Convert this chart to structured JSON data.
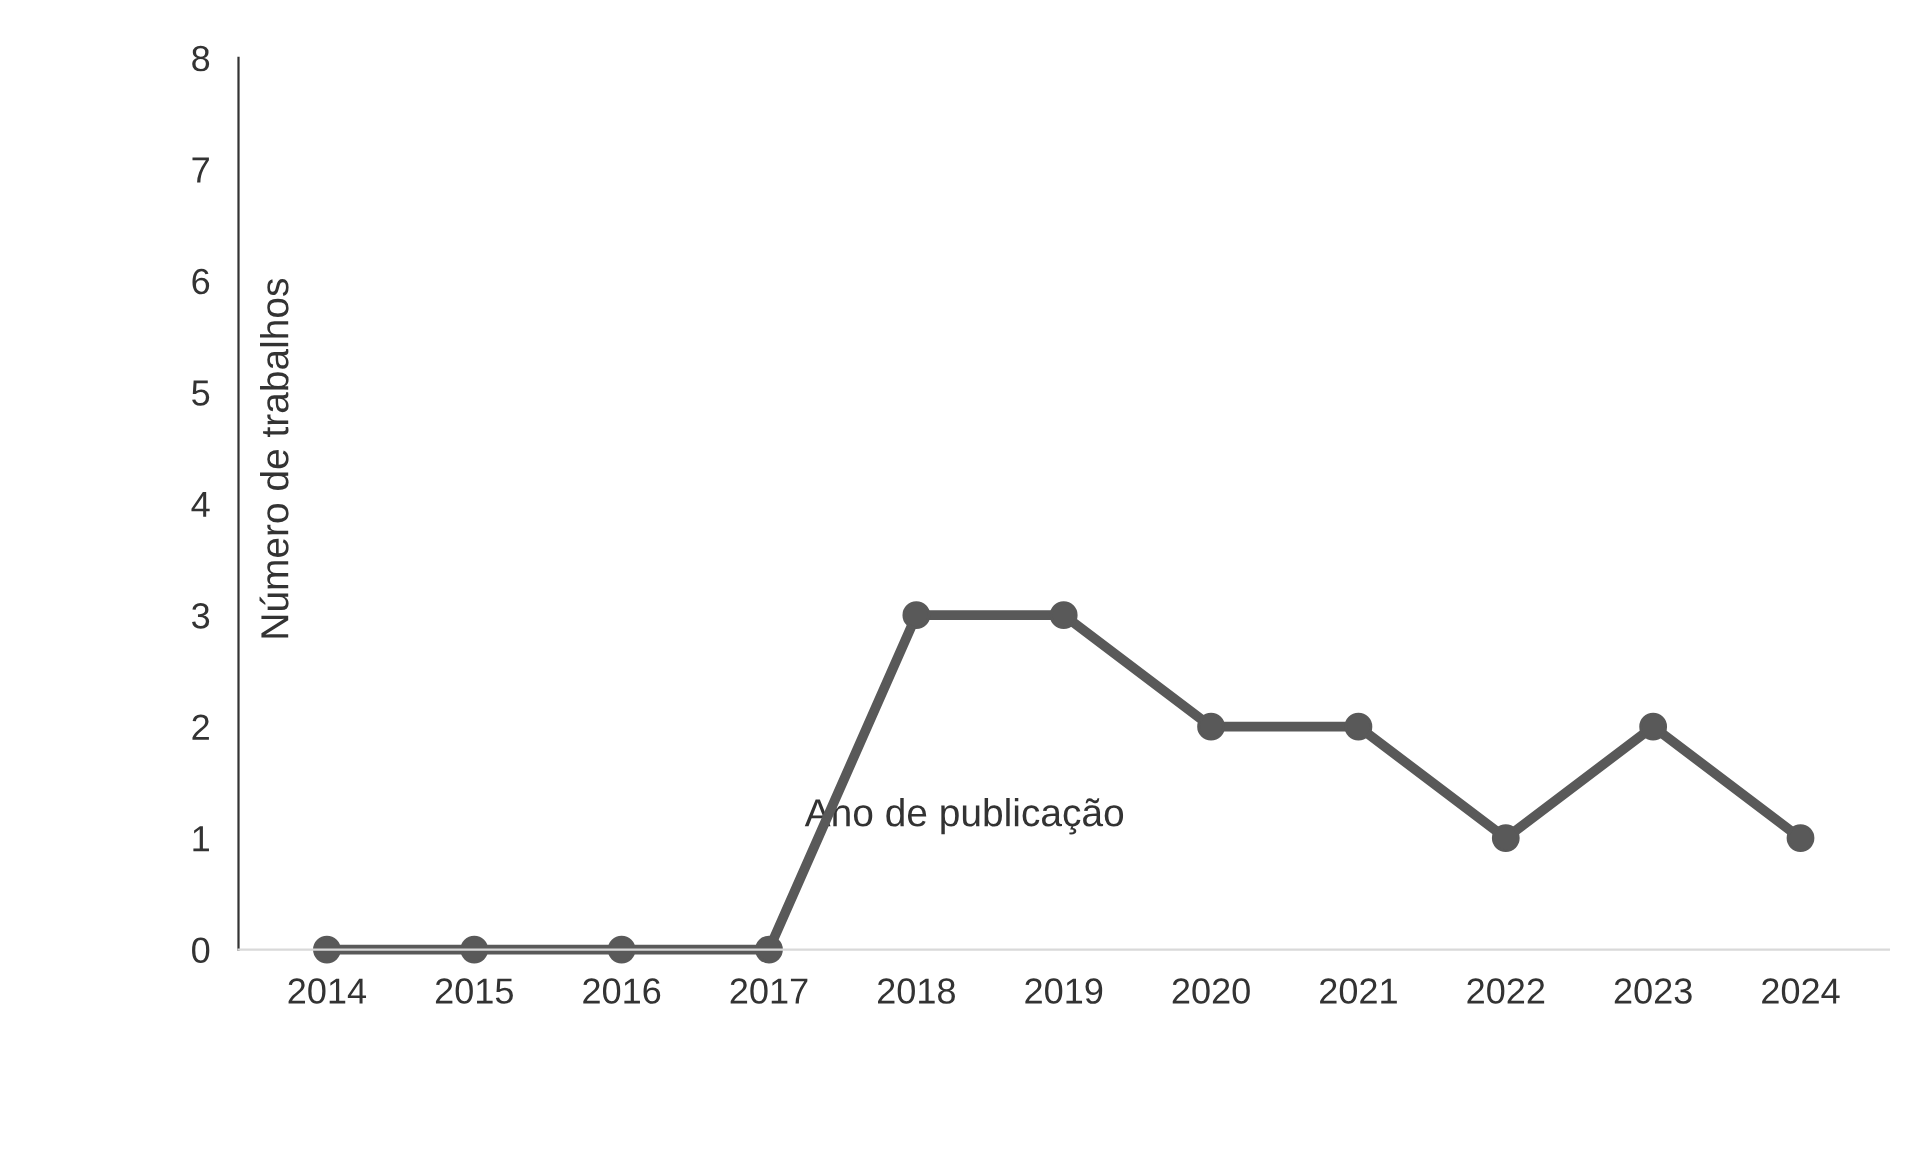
{
  "chart_data": {
    "type": "line",
    "xlabel": "Ano de publicação",
    "ylabel": "Número de trabalhos",
    "categories": [
      "2014",
      "2015",
      "2016",
      "2017",
      "2018",
      "2019",
      "2020",
      "2021",
      "2022",
      "2023",
      "2024"
    ],
    "series": [
      {
        "color": "#595959",
        "values": [
          0,
          0,
          0,
          0,
          3,
          3,
          2,
          2,
          1,
          2,
          1
        ]
      }
    ],
    "ylim": [
      0,
      8
    ],
    "yticks": [
      0,
      1,
      2,
      3,
      4,
      5,
      6,
      7,
      8
    ],
    "marker": "circle",
    "line_style": "solid",
    "grid": false
  }
}
